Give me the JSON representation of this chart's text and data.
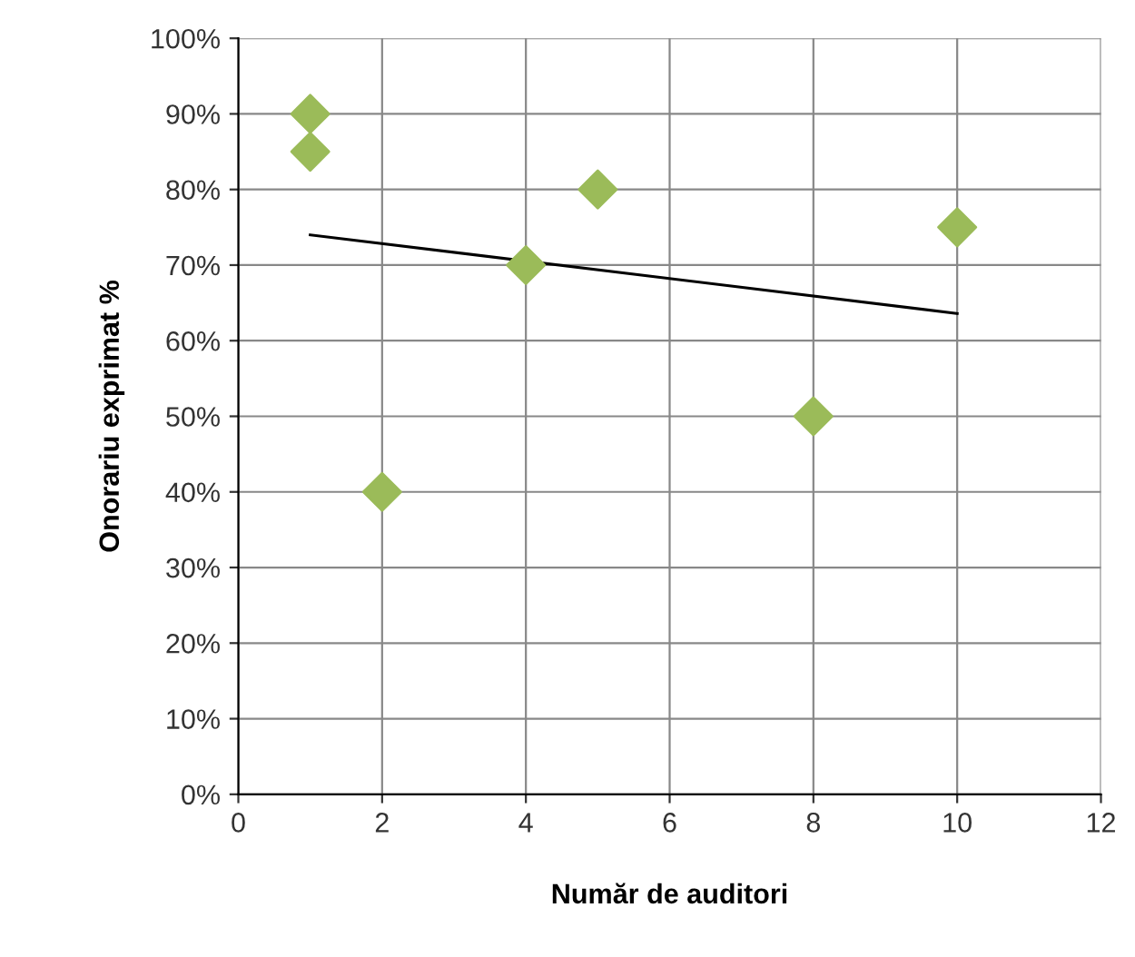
{
  "chart_data": {
    "type": "scatter",
    "xlabel": "Număr de auditori",
    "ylabel": "Onorariu exprimat %",
    "xlim": [
      0,
      12
    ],
    "xticks": [
      0,
      2,
      4,
      6,
      8,
      10,
      12
    ],
    "ylim": [
      0,
      100
    ],
    "yticks": [
      {
        "value": 0,
        "label": "0%"
      },
      {
        "value": 10,
        "label": "10%"
      },
      {
        "value": 20,
        "label": "20%"
      },
      {
        "value": 30,
        "label": "30%"
      },
      {
        "value": 40,
        "label": "40%"
      },
      {
        "value": 50,
        "label": "50%"
      },
      {
        "value": 60,
        "label": "60%"
      },
      {
        "value": 70,
        "label": "70%"
      },
      {
        "value": 80,
        "label": "80%"
      },
      {
        "value": 90,
        "label": "90%"
      },
      {
        "value": 100,
        "label": "100%"
      }
    ],
    "grid": true,
    "marker": "diamond",
    "series": [
      {
        "color": "#9bbb59",
        "x": [
          1,
          1,
          2,
          4,
          5,
          8,
          10
        ],
        "values": [
          90,
          85,
          40,
          70,
          80,
          50,
          75
        ]
      },
      {
        "type": "line",
        "color": "#000000",
        "x": [
          1,
          10
        ],
        "values": [
          74,
          63.6
        ],
        "marker": "none",
        "line_style": "solid"
      }
    ]
  }
}
